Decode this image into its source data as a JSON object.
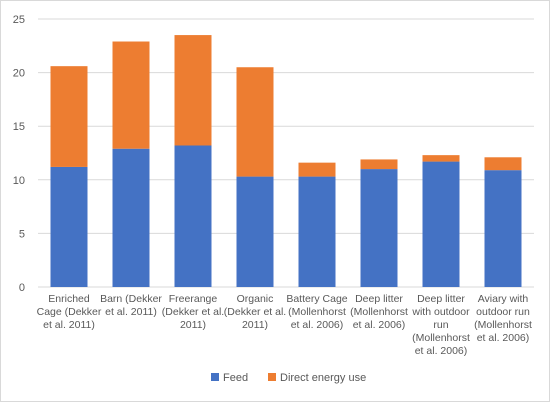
{
  "chart_data": {
    "type": "bar",
    "stacked": true,
    "title": "",
    "xlabel": "",
    "ylabel": "",
    "ylim": [
      0,
      25
    ],
    "yticks": [
      0,
      5,
      10,
      15,
      20,
      25
    ],
    "grid": true,
    "legend_position": "bottom",
    "categories": [
      [
        "Enriched",
        "Cage (Dekker",
        "et al. 2011)"
      ],
      [
        "Barn (Dekker",
        "et al. 2011)"
      ],
      [
        "Freerange",
        "(Dekker et al.",
        "2011)"
      ],
      [
        "Organic",
        "(Dekker et al.",
        "2011)"
      ],
      [
        "Battery Cage",
        "(Mollenhorst",
        "et al. 2006)"
      ],
      [
        "Deep litter",
        "(Mollenhorst",
        "et al. 2006)"
      ],
      [
        "Deep litter",
        "with outdoor",
        "run",
        "(Mollenhorst",
        "et al. 2006)"
      ],
      [
        "Aviary with",
        "outdoor run",
        "(Mollenhorst",
        "et al. 2006)"
      ]
    ],
    "series": [
      {
        "name": "Feed",
        "color": "#4472c4",
        "values": [
          11.2,
          12.9,
          13.2,
          10.3,
          10.3,
          11.0,
          11.7,
          10.9
        ]
      },
      {
        "name": "Direct energy use",
        "color": "#ed7d31",
        "values": [
          9.4,
          10.0,
          10.3,
          10.2,
          1.3,
          0.9,
          0.6,
          1.2
        ]
      }
    ]
  }
}
